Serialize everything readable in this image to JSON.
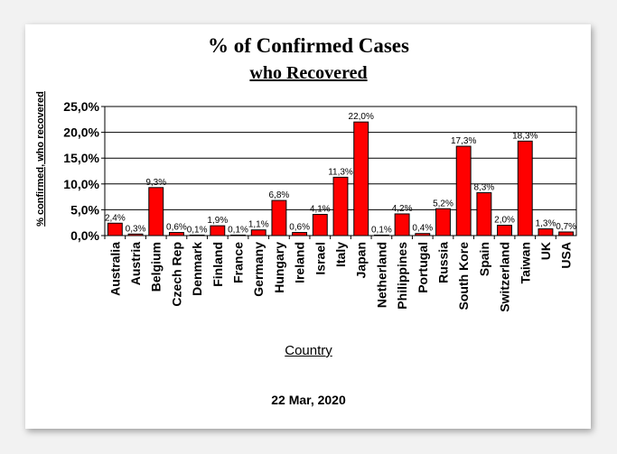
{
  "chart_data": {
    "type": "bar",
    "title": "% of Confirmed Cases",
    "subtitle": "who Recovered",
    "xlabel": "Country",
    "ylabel": "% confirmed, who recovered",
    "ylim": [
      0,
      25
    ],
    "yticks": [
      "0,0%",
      "5,0%",
      "10,0%",
      "15,0%",
      "20,0%",
      "25,0%"
    ],
    "grid": true,
    "bar_color": "#ff0000",
    "highlight_color": "#ffff33",
    "categories": [
      "Australia",
      "Austria",
      "Belgium",
      "Czech Rep",
      "Denmark",
      "Finland",
      "France",
      "Germany",
      "Hungary",
      "Ireland",
      "Israel",
      "Italy",
      "Japan",
      "Netherland",
      "Philippines",
      "Portugal",
      "Russia",
      "South Kore",
      "Spain",
      "Switzerland",
      "Taiwan",
      "UK",
      "USA"
    ],
    "values": [
      2.4,
      0.3,
      9.3,
      0.6,
      0.1,
      1.9,
      0.1,
      1.1,
      6.8,
      0.6,
      4.1,
      11.3,
      22.0,
      0.1,
      4.2,
      0.4,
      5.2,
      17.3,
      8.3,
      2.0,
      18.3,
      1.3,
      0.7
    ],
    "data_labels": [
      "2,4%",
      "0,3%",
      "9,3%",
      "0,6%",
      "0,1%",
      "1,9%",
      "0,1%",
      "1,1%",
      "6,8%",
      "0,6%",
      "4,1%",
      "11,3%",
      "22,0%",
      "0,1%",
      "4,2%",
      "0,4%",
      "5,2%",
      "17,3%",
      "8,3%",
      "2,0%",
      "18,3%",
      "1,3%",
      "0,7%"
    ],
    "footer": "22 Mar, 2020"
  }
}
